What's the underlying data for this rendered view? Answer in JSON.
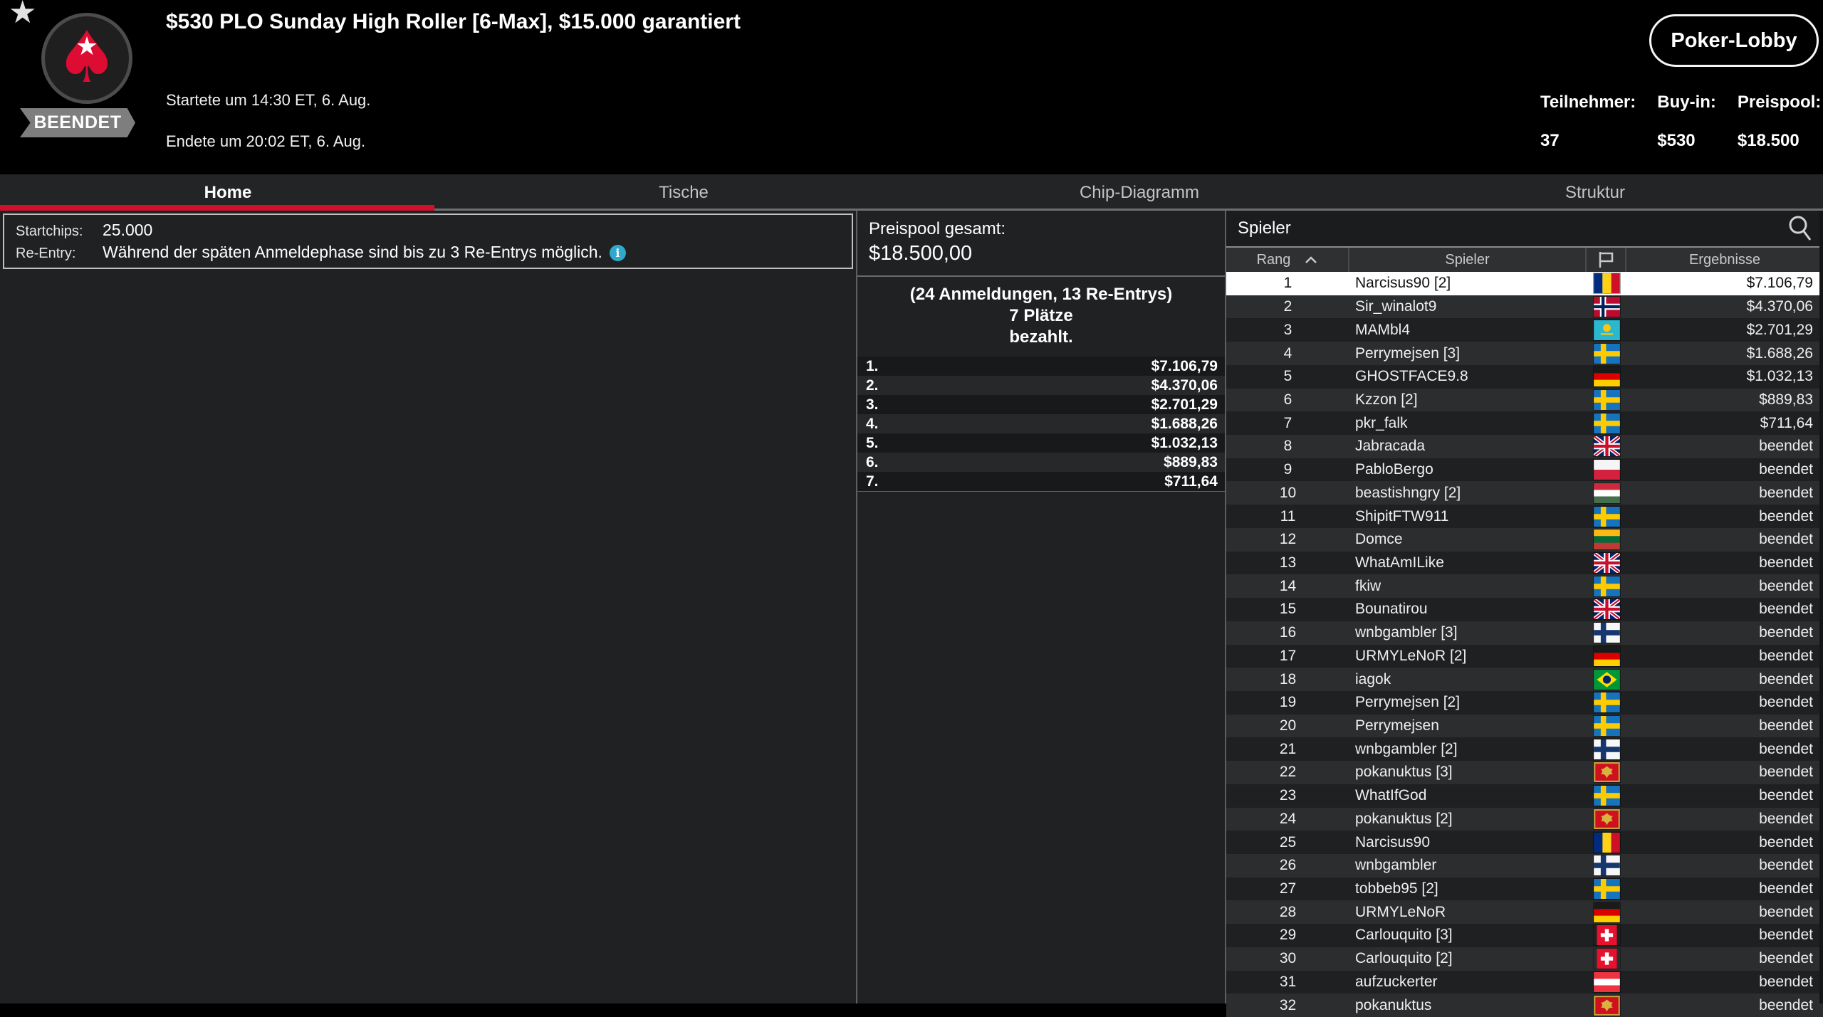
{
  "colors": {
    "accent_red": "#d0112b",
    "info_icon_teal": "#2fa8cc",
    "selected_row": "#ffffff",
    "background": "#000000"
  },
  "header": {
    "status_badge": "BEENDET",
    "title": "$530 PLO Sunday High Roller [6-Max], $15.000 garantiert",
    "started": "Startete um 14:30 ET, 6. Aug.",
    "ended": "Endete um 20:02 ET, 6. Aug.",
    "lobby_button": "Poker-Lobby",
    "stats": [
      {
        "label": "Teilnehmer:",
        "value": "37"
      },
      {
        "label": "Buy-in:",
        "value": "$530"
      },
      {
        "label": "Preispool:",
        "value": "$18.500"
      }
    ]
  },
  "tabs": [
    {
      "label": "Home",
      "active": true
    },
    {
      "label": "Tische",
      "active": false
    },
    {
      "label": "Chip-Diagramm",
      "active": false
    },
    {
      "label": "Struktur",
      "active": false
    }
  ],
  "info_box": {
    "rows": [
      {
        "label": "Startchips:",
        "value": "25.000",
        "info_icon": false
      },
      {
        "label": "Re-Entry:",
        "value": "Während der späten Anmeldephase sind bis zu 3 Re-Entrys möglich.",
        "info_icon": true
      }
    ]
  },
  "prize_panel": {
    "total_label": "Preispool gesamt:",
    "total_value": "$18.500,00",
    "registrations_line1": "(24 Anmeldungen, 13 Re-Entrys)",
    "registrations_line2": "7 Plätze",
    "registrations_line3": "bezahlt.",
    "payouts": [
      {
        "place": "1.",
        "amount": "$7.106,79"
      },
      {
        "place": "2.",
        "amount": "$4.370,06"
      },
      {
        "place": "3.",
        "amount": "$2.701,29"
      },
      {
        "place": "4.",
        "amount": "$1.688,26"
      },
      {
        "place": "5.",
        "amount": "$1.032,13"
      },
      {
        "place": "6.",
        "amount": "$889,83"
      },
      {
        "place": "7.",
        "amount": "$711,64"
      }
    ]
  },
  "players_panel": {
    "title": "Spieler",
    "columns": {
      "rank": "Rang",
      "player": "Spieler",
      "flag": "flag-icon",
      "result": "Ergebnisse"
    },
    "rows": [
      {
        "rank": "1",
        "player": "Narcisus90 [2]",
        "country": "RO",
        "result": "$7.106,79",
        "selected": true
      },
      {
        "rank": "2",
        "player": "Sir_winalot9",
        "country": "NO",
        "result": "$4.370,06",
        "selected": false
      },
      {
        "rank": "3",
        "player": "MAMbl4",
        "country": "KZ",
        "result": "$2.701,29",
        "selected": false
      },
      {
        "rank": "4",
        "player": "Perrymejsen [3]",
        "country": "SE",
        "result": "$1.688,26",
        "selected": false
      },
      {
        "rank": "5",
        "player": "GHOSTFACE9.8",
        "country": "DE",
        "result": "$1.032,13",
        "selected": false
      },
      {
        "rank": "6",
        "player": "Kzzon [2]",
        "country": "SE",
        "result": "$889,83",
        "selected": false
      },
      {
        "rank": "7",
        "player": "pkr_falk",
        "country": "SE",
        "result": "$711,64",
        "selected": false
      },
      {
        "rank": "8",
        "player": "Jabracada",
        "country": "GB",
        "result": "beendet",
        "selected": false
      },
      {
        "rank": "9",
        "player": "PabloBergo",
        "country": "PL",
        "result": "beendet",
        "selected": false
      },
      {
        "rank": "10",
        "player": "beastishngry [2]",
        "country": "HU",
        "result": "beendet",
        "selected": false
      },
      {
        "rank": "11",
        "player": "ShipitFTW911",
        "country": "SE",
        "result": "beendet",
        "selected": false
      },
      {
        "rank": "12",
        "player": "Domce",
        "country": "LT",
        "result": "beendet",
        "selected": false
      },
      {
        "rank": "13",
        "player": "WhatAmILike",
        "country": "GB",
        "result": "beendet",
        "selected": false
      },
      {
        "rank": "14",
        "player": "fkiw",
        "country": "SE",
        "result": "beendet",
        "selected": false
      },
      {
        "rank": "15",
        "player": "Bounatirou",
        "country": "GB",
        "result": "beendet",
        "selected": false
      },
      {
        "rank": "16",
        "player": "wnbgambler [3]",
        "country": "FI",
        "result": "beendet",
        "selected": false
      },
      {
        "rank": "17",
        "player": "URMYLeNoR [2]",
        "country": "DE",
        "result": "beendet",
        "selected": false
      },
      {
        "rank": "18",
        "player": "iagok",
        "country": "BR",
        "result": "beendet",
        "selected": false
      },
      {
        "rank": "19",
        "player": "Perrymejsen [2]",
        "country": "SE",
        "result": "beendet",
        "selected": false
      },
      {
        "rank": "20",
        "player": "Perrymejsen",
        "country": "SE",
        "result": "beendet",
        "selected": false
      },
      {
        "rank": "21",
        "player": "wnbgambler [2]",
        "country": "FI",
        "result": "beendet",
        "selected": false
      },
      {
        "rank": "22",
        "player": "pokanuktus [3]",
        "country": "ME",
        "result": "beendet",
        "selected": false
      },
      {
        "rank": "23",
        "player": "WhatIfGod",
        "country": "SE",
        "result": "beendet",
        "selected": false
      },
      {
        "rank": "24",
        "player": "pokanuktus [2]",
        "country": "ME",
        "result": "beendet",
        "selected": false
      },
      {
        "rank": "25",
        "player": "Narcisus90",
        "country": "RO",
        "result": "beendet",
        "selected": false
      },
      {
        "rank": "26",
        "player": "wnbgambler",
        "country": "FI",
        "result": "beendet",
        "selected": false
      },
      {
        "rank": "27",
        "player": "tobbeb95 [2]",
        "country": "SE",
        "result": "beendet",
        "selected": false
      },
      {
        "rank": "28",
        "player": "URMYLeNoR",
        "country": "DE",
        "result": "beendet",
        "selected": false
      },
      {
        "rank": "29",
        "player": "Carlouquito [3]",
        "country": "CH",
        "result": "beendet",
        "selected": false
      },
      {
        "rank": "30",
        "player": "Carlouquito [2]",
        "country": "CH",
        "result": "beendet",
        "selected": false
      },
      {
        "rank": "31",
        "player": "aufzuckerter",
        "country": "AT",
        "result": "beendet",
        "selected": false
      },
      {
        "rank": "32",
        "player": "pokanuktus",
        "country": "ME",
        "result": "beendet",
        "selected": false
      }
    ]
  }
}
